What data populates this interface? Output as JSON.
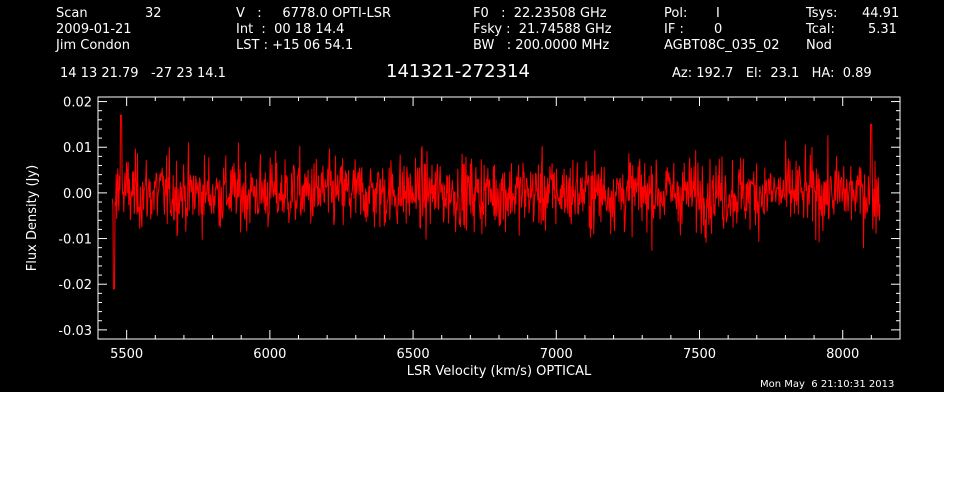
{
  "header": {
    "col1": [
      "Scan",
      "32",
      "2009-01-21",
      "Jim Condon"
    ],
    "col2": [
      "V   :     6778.0 OPTI-LSR",
      "Int  :  00 18 14.4",
      "LST : +15 06 54.1"
    ],
    "col3": [
      "F0   :  22.23508 GHz",
      "Fsky :  21.74588 GHz",
      "BW   : 200.0000 MHz"
    ],
    "col4": [
      "Pol:",
      "I",
      "IF :",
      "0",
      "AGBT08C_035_02"
    ],
    "col5": [
      "Tsys:",
      "44.91",
      "Tcal:",
      "5.31",
      "Nod"
    ]
  },
  "coords": "14 13 21.79   -27 23 14.1",
  "source": "141321-272314",
  "pointing": "Az: 192.7   El:  23.1   HA:  0.89",
  "timestamp": "Mon May  6 21:10:31 2013",
  "colors": {
    "background": "#000000",
    "axes": "#ffffff",
    "series": "#ff0000"
  },
  "chart_data": {
    "type": "line",
    "xlabel": "LSR Velocity (km/s) OPTICAL",
    "ylabel": "Flux Density (Jy)",
    "xlim": [
      5400,
      8200
    ],
    "ylim": [
      -0.032,
      0.021
    ],
    "xticks": [
      5500,
      6000,
      6500,
      7000,
      7500,
      8000
    ],
    "xtick_labels": [
      "5500",
      "6000",
      "6500",
      "7000",
      "7500",
      "8000"
    ],
    "yticks": [
      0.02,
      0.01,
      0.0,
      -0.01,
      -0.02,
      -0.03
    ],
    "ytick_labels": [
      "0.02",
      "0.01",
      "0.00",
      "-0.01",
      "-0.02",
      "-0.03"
    ],
    "grid": false,
    "series": [
      {
        "color": "#ff0000",
        "x_range": [
          5450,
          8130
        ],
        "noise_rms_jy": 0.004,
        "features": [
          {
            "x": 5455,
            "y": -0.021
          },
          {
            "x": 5480,
            "y": 0.017
          },
          {
            "x": 8100,
            "y": 0.015
          }
        ]
      }
    ]
  }
}
